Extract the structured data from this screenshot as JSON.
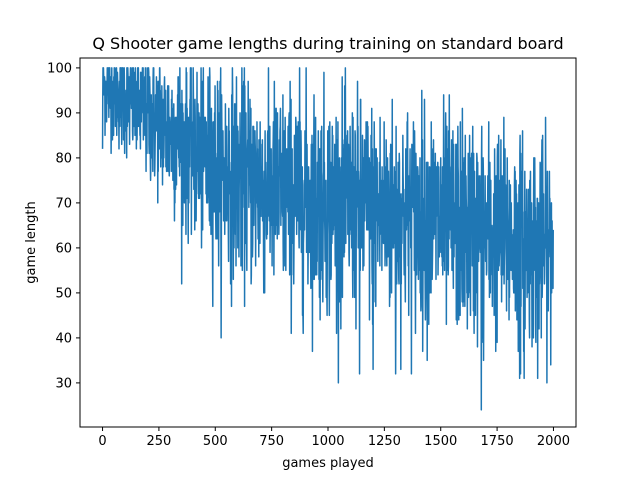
{
  "chart_data": {
    "type": "line",
    "title": "Q Shooter game lengths during training on standard board",
    "xlabel": "games played",
    "ylabel": "game length",
    "xlim": [
      -100,
      2100
    ],
    "ylim": [
      20.2,
      102.2
    ],
    "xticks": [
      0,
      250,
      500,
      750,
      1000,
      1250,
      1500,
      1750,
      2000
    ],
    "yticks": [
      30,
      40,
      50,
      60,
      70,
      80,
      90,
      100
    ],
    "grid": false,
    "legend": "none",
    "series": [
      {
        "color": "#1f77b4",
        "n_points": 2000,
        "x_start": 0,
        "x_end": 1999,
        "trend_mean": [
          [
            0,
            96
          ],
          [
            100,
            93
          ],
          [
            250,
            88
          ],
          [
            400,
            82
          ],
          [
            500,
            78
          ],
          [
            750,
            73
          ],
          [
            1000,
            70
          ],
          [
            1250,
            68
          ],
          [
            1500,
            66
          ],
          [
            1750,
            63
          ],
          [
            1999,
            60
          ]
        ],
        "trend_spread": [
          [
            0,
            5
          ],
          [
            250,
            8
          ],
          [
            500,
            11
          ],
          [
            1000,
            12
          ],
          [
            1500,
            12
          ],
          [
            1999,
            11
          ]
        ],
        "max": 100,
        "min": 24,
        "notable_points": [
          {
            "x": 0,
            "y": 82
          },
          {
            "x": 1140,
            "y": 32
          },
          {
            "x": 1200,
            "y": 33
          },
          {
            "x": 1300,
            "y": 32
          },
          {
            "x": 1680,
            "y": 24
          },
          {
            "x": 1690,
            "y": 35
          },
          {
            "x": 1850,
            "y": 31
          },
          {
            "x": 1870,
            "y": 31
          },
          {
            "x": 1930,
            "y": 31
          }
        ]
      }
    ]
  }
}
